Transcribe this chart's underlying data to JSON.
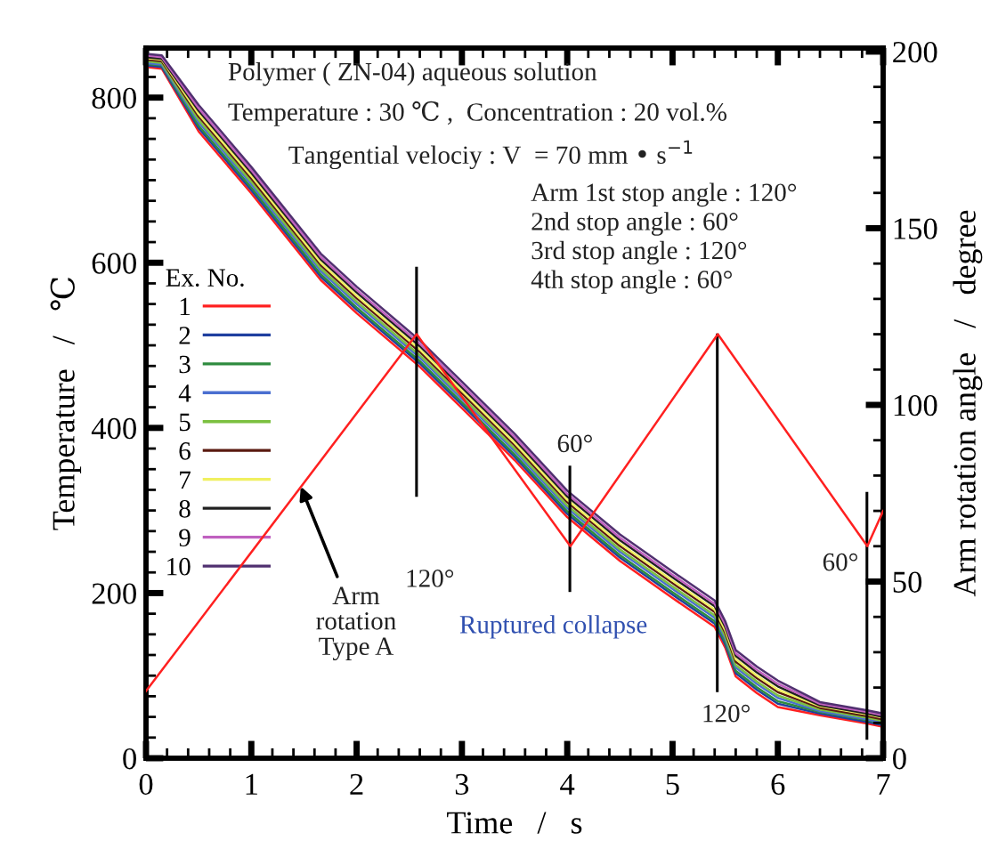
{
  "chart_data": {
    "type": "line",
    "xlabel": "Time   /   s",
    "ylabel": "Temperature   /   ℃",
    "y2label": "Arm rotation angle   /   degree",
    "legend_title": "Ex. No.",
    "legend": "left",
    "grid": false,
    "marker": "none",
    "line_style": "solid",
    "x": [
      0,
      0.15,
      0.5,
      1,
      1.66,
      2,
      2.6,
      3,
      3.5,
      4,
      4.5,
      5,
      5.4,
      5.5,
      5.6,
      5.8,
      6,
      6.4,
      6.85,
      7
    ],
    "series": [
      {
        "name": "1",
        "color": "#ff2020",
        "values": [
          837,
          835,
          759,
          684,
          579,
          539,
          474,
          424,
          361,
          292,
          239,
          194,
          159,
          134,
          99,
          79,
          62,
          52,
          42,
          38
        ]
      },
      {
        "name": "2",
        "color": "#1f3f9f",
        "values": [
          839,
          837,
          763,
          688,
          583,
          543,
          478,
          428,
          365,
          296,
          243,
          198,
          163,
          138,
          103,
          83,
          66,
          54,
          44,
          40
        ]
      },
      {
        "name": "3",
        "color": "#2e8b3e",
        "values": [
          841,
          839,
          766,
          691,
          586,
          546,
          481,
          431,
          368,
          299,
          246,
          201,
          166,
          141,
          106,
          86,
          69,
          56,
          46,
          42
        ]
      },
      {
        "name": "4",
        "color": "#4a6fd0",
        "values": [
          842,
          840,
          770,
          695,
          590,
          550,
          485,
          435,
          372,
          303,
          250,
          205,
          170,
          145,
          110,
          90,
          73,
          57,
          47,
          43
        ]
      },
      {
        "name": "5",
        "color": "#7cc040",
        "values": [
          844,
          842,
          773,
          698,
          593,
          553,
          488,
          438,
          375,
          306,
          253,
          208,
          173,
          148,
          113,
          93,
          76,
          59,
          49,
          45
        ]
      },
      {
        "name": "6",
        "color": "#5a1a10",
        "values": [
          846,
          844,
          777,
          702,
          597,
          557,
          492,
          442,
          379,
          310,
          257,
          212,
          177,
          152,
          117,
          97,
          80,
          61,
          51,
          47
        ]
      },
      {
        "name": "7",
        "color": "#f0f060",
        "values": [
          848,
          846,
          780,
          705,
          600,
          560,
          495,
          445,
          382,
          313,
          260,
          215,
          180,
          155,
          120,
          100,
          83,
          63,
          53,
          49
        ]
      },
      {
        "name": "8",
        "color": "#202020",
        "values": [
          849,
          847,
          784,
          709,
          604,
          564,
          499,
          449,
          386,
          317,
          264,
          219,
          184,
          159,
          124,
          104,
          87,
          64,
          54,
          50
        ]
      },
      {
        "name": "9",
        "color": "#c060c0",
        "values": [
          851,
          849,
          787,
          712,
          607,
          567,
          502,
          452,
          389,
          320,
          267,
          222,
          187,
          162,
          127,
          107,
          90,
          66,
          56,
          52
        ]
      },
      {
        "name": "10",
        "color": "#503070",
        "values": [
          853,
          851,
          791,
          716,
          611,
          571,
          506,
          456,
          393,
          324,
          271,
          226,
          191,
          166,
          131,
          111,
          94,
          68,
          58,
          54
        ]
      },
      {
        "color": "#ff2020",
        "axis": "y2",
        "x": [
          0,
          2.57,
          4.03,
          5.43,
          6.85,
          7
        ],
        "values": [
          19,
          120,
          60,
          120,
          60,
          70
        ]
      }
    ],
    "xlim": [
      0,
      7
    ],
    "xticks": [
      0,
      1,
      2,
      3,
      4,
      5,
      6,
      7
    ],
    "ylim": [
      0,
      860
    ],
    "yticks": [
      0,
      200,
      400,
      600,
      800
    ],
    "y2lim": [
      0,
      201
    ],
    "y2ticks": [
      0,
      50,
      100,
      150,
      200
    ],
    "annotations": [
      "Polymer ( ZN-04) aqueous solution",
      "Temperature : 30 ℃ ,  Concentration : 20 vol.%",
      "Tangential velociy : V  = 70 mm • s$^{−1}$",
      "Arm 1st stop angle : 120°\n2nd stop angle : 60°\n3rd stop angle : 120°\n4th stop angle : 60°",
      "120°",
      "60°",
      "120°",
      "60°",
      {
        "text": "Arm\nrotation\nType A",
        "x": 1.47,
        "y": 329
      },
      "Ruptured collapse"
    ]
  }
}
